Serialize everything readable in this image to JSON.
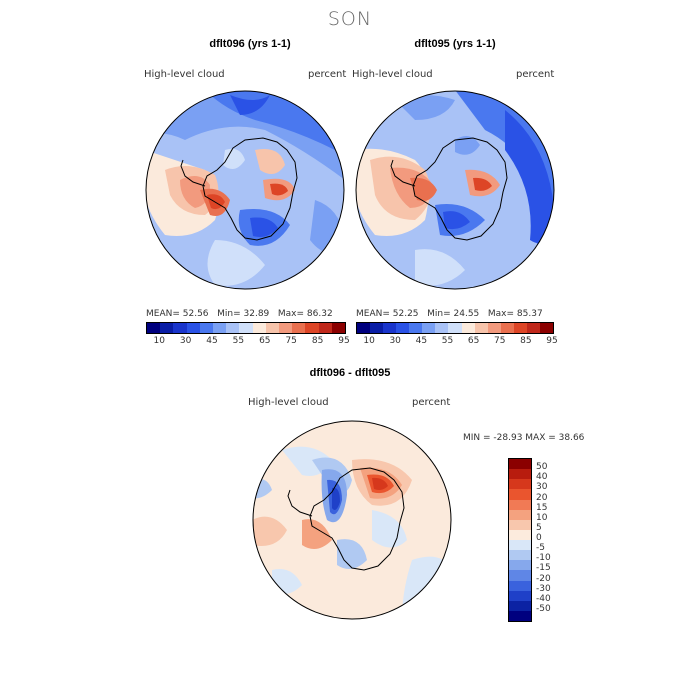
{
  "title": "SON",
  "panels": [
    {
      "title": "dflt096 (yrs 1-1)",
      "left_label": "High-level cloud",
      "right_label": "percent",
      "mean_label": "MEAN=",
      "mean": "52.56",
      "min_label": "Min=",
      "min": "32.89",
      "max_label": "Max=",
      "max": "86.32"
    },
    {
      "title": "dflt095 (yrs 1-1)",
      "left_label": "High-level cloud",
      "right_label": "percent",
      "mean_label": "MEAN=",
      "mean": "52.25",
      "min_label": "Min=",
      "min": "24.55",
      "max_label": "Max=",
      "max": "85.37"
    }
  ],
  "abs_colorbar": {
    "colors": [
      "#00007f",
      "#0a1ea6",
      "#1a35cc",
      "#2a52e6",
      "#4a78ef",
      "#7aa0f3",
      "#a9c2f6",
      "#d0e0fa",
      "#fbeadc",
      "#f7c4ab",
      "#f29a7e",
      "#e9704f",
      "#dd4526",
      "#c0281b",
      "#8b0000"
    ],
    "tick_labels": [
      "10",
      "30",
      "45",
      "55",
      "65",
      "75",
      "85",
      "95"
    ]
  },
  "diff_panel": {
    "title": "dflt096 - dflt095",
    "left_label": "High-level cloud",
    "right_label": "percent",
    "minmax_text": "MIN = -28.93  MAX =  38.66"
  },
  "diff_colorbar": {
    "colors": [
      "#8b0000",
      "#b81c0e",
      "#d6381c",
      "#ea552e",
      "#f17a55",
      "#f4a27f",
      "#f8c7ad",
      "#fcebdd",
      "#d9e7f8",
      "#b0c9f2",
      "#86a8ec",
      "#5f86e6",
      "#3a62dd",
      "#1f40c8",
      "#0b22a3",
      "#00007f"
    ],
    "tick_labels": [
      "50",
      "40",
      "30",
      "20",
      "15",
      "10",
      "5",
      "0",
      "-5",
      "-10",
      "-15",
      "-20",
      "-30",
      "-40",
      "-50"
    ]
  }
}
